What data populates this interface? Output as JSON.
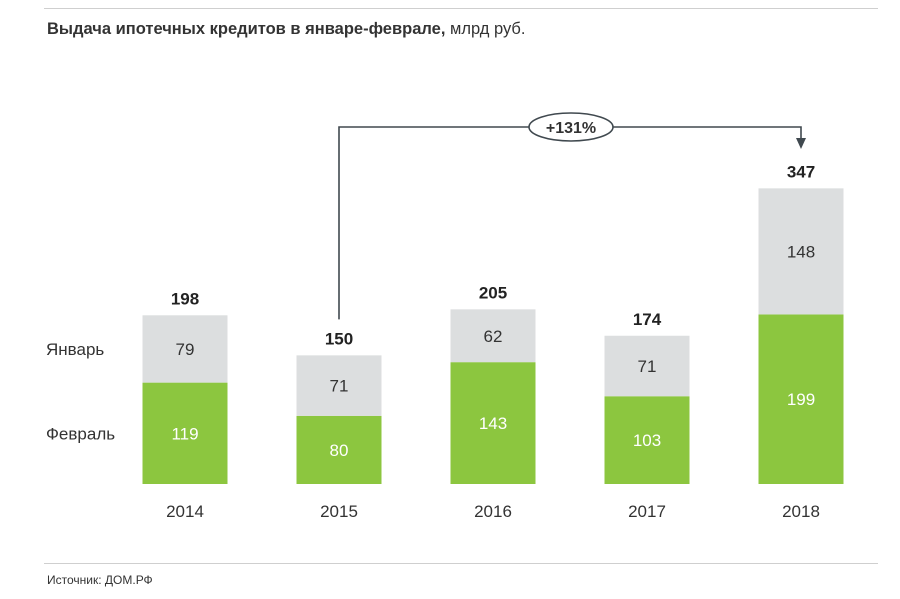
{
  "title": {
    "bold": "Выдача ипотечных кредитов в январе-феврале,",
    "unit": "млрд руб."
  },
  "source": "Источник: ДОМ.РФ",
  "colors": {
    "january": "#dcdedf",
    "february": "#8cc63f",
    "growth_line": "#40494f"
  },
  "chart_data": {
    "type": "bar",
    "stacked": true,
    "title": "Выдача ипотечных кредитов в январе-феврале, млрд руб.",
    "categories": [
      "2014",
      "2015",
      "2016",
      "2017",
      "2018"
    ],
    "series": [
      {
        "name": "Февраль",
        "values": [
          119,
          80,
          143,
          103,
          199
        ]
      },
      {
        "name": "Январь",
        "values": [
          79,
          71,
          62,
          71,
          148
        ]
      }
    ],
    "totals": [
      198,
      150,
      205,
      174,
      347
    ],
    "annotation": {
      "text": "+131%",
      "from": "2015",
      "to": "2018"
    },
    "xlabel": "",
    "ylabel": "",
    "ylim": [
      0,
      347
    ]
  }
}
